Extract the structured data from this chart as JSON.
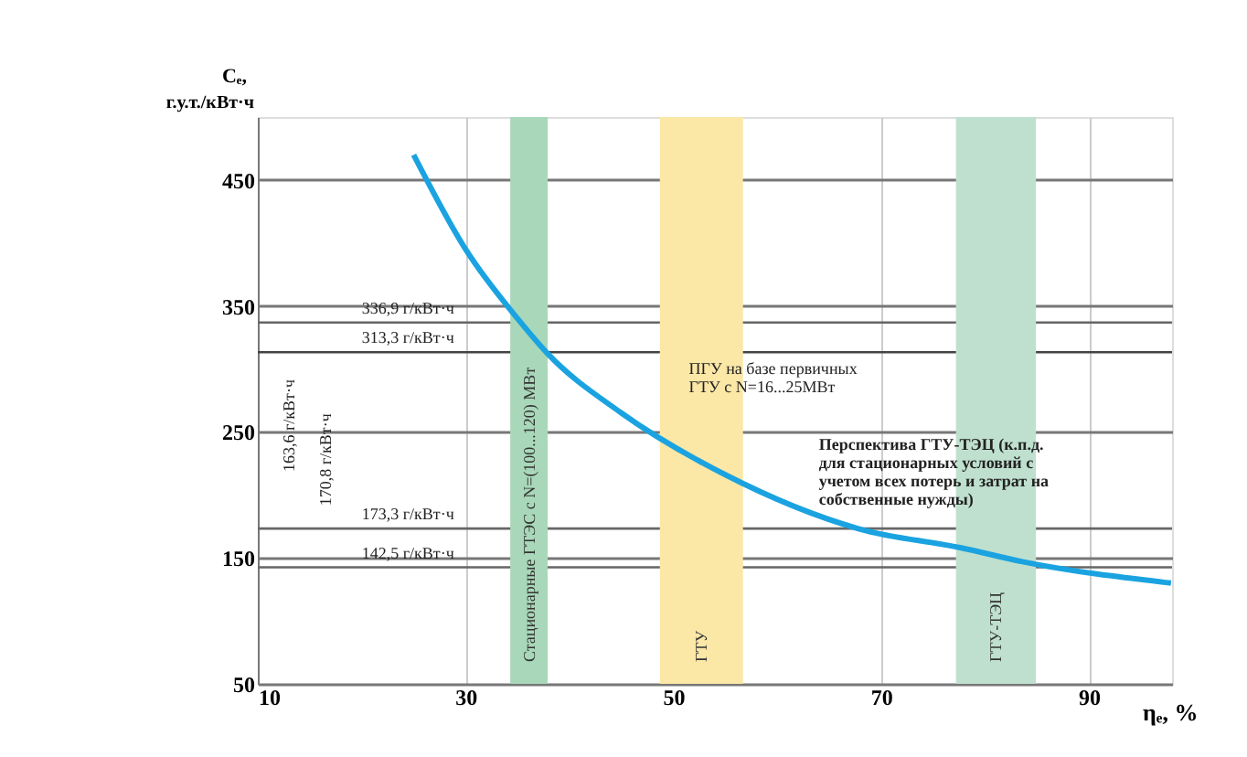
{
  "chart_data": {
    "type": "line",
    "xlabel": "ηₑ, %",
    "ylabel": "Cₑ, г.у.т./кВт·ч",
    "x": [
      25,
      30,
      35,
      37.8,
      45,
      55,
      67.9,
      77.7,
      83.6,
      97.9
    ],
    "values": [
      470,
      395,
      340,
      313,
      265,
      216,
      173,
      158,
      147,
      130
    ],
    "color": "#1aa3e0",
    "xlim": [
      10,
      98
    ],
    "ylim": [
      50,
      500
    ],
    "xticks": [
      10,
      30,
      50,
      70,
      90
    ],
    "yticks": [
      50,
      150,
      250,
      350,
      450
    ],
    "grid": true,
    "bands": [
      {
        "axis": "x",
        "from": 34.3,
        "to": 37.9,
        "label": "Стационарные ГТЭС с N=(100...120) МВт",
        "color": "#a8d8b9"
      },
      {
        "axis": "x",
        "from": 48.7,
        "to": 56.7,
        "label": "ГТУ",
        "color": "#fbe7a6"
      },
      {
        "axis": "x",
        "from": 77.2,
        "to": 84.9,
        "label": "ГТУ-ТЭЦ",
        "color": "#bfe0cf"
      }
    ],
    "ref_lines": [
      {
        "axis": "y",
        "value": 336.9,
        "label": "336,9 г/кВт·ч",
        "color": "#666666"
      },
      {
        "axis": "y",
        "value": 313.3,
        "label": "313,3 г/кВт·ч",
        "color": "#444444"
      },
      {
        "axis": "y",
        "value": 173.3,
        "label": "173,3 г/кВт·ч",
        "color": "#666666"
      },
      {
        "axis": "y",
        "value": 142.5,
        "label": "142,5 г/кВт·ч",
        "color": "#666666"
      }
    ],
    "annotations": [
      "163,6 г/кВт·ч",
      "170,8 г/кВт·ч",
      "ПГУ на базе первичных ГТУ с N=16...25МВт",
      "Перспектива ГТУ-ТЭЦ (к.п.д. для стационарных условий с учетом всех потерь и затрат на собственные нужды)"
    ]
  }
}
